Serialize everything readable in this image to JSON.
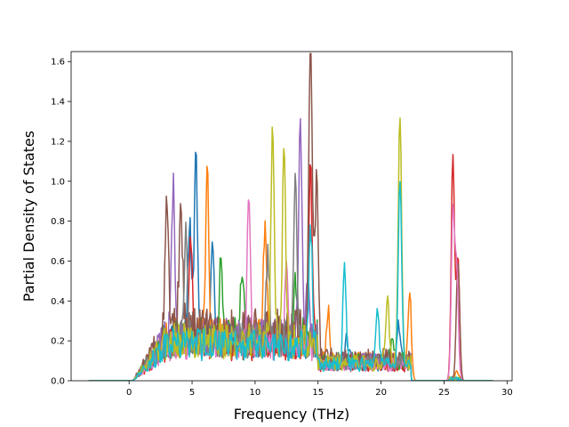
{
  "chart_data": {
    "type": "line",
    "title": "",
    "xlabel": "Frequency (THz)",
    "ylabel": "Partial Density of States",
    "xlim": [
      -4.6,
      30.4
    ],
    "ylim": [
      0,
      1.65
    ],
    "x_ticks": [
      0,
      5,
      10,
      15,
      20,
      25,
      30
    ],
    "y_ticks": [
      0.0,
      0.2,
      0.4,
      0.6,
      0.8,
      1.0,
      1.2,
      1.4,
      1.6
    ],
    "x_tick_labels": [
      "0",
      "5",
      "10",
      "15",
      "20",
      "25",
      "30"
    ],
    "y_tick_labels": [
      "0.0",
      "0.2",
      "0.4",
      "0.6",
      "0.8",
      "1.0",
      "1.2",
      "1.4",
      "1.6"
    ],
    "grid": false,
    "legend": "none",
    "series": [
      {
        "color": "#1f77b4",
        "peaks": [
          [
            5.3,
            0.93
          ],
          [
            4.8,
            0.62
          ],
          [
            6.6,
            0.5
          ],
          [
            17.3,
            0.12
          ],
          [
            21.4,
            0.2
          ]
        ],
        "base": 0.2
      },
      {
        "color": "#ff7f0e",
        "peaks": [
          [
            6.2,
            0.82
          ],
          [
            10.8,
            0.62
          ],
          [
            15.8,
            0.26
          ],
          [
            22.3,
            0.33
          ],
          [
            26.0,
            0.05
          ]
        ],
        "base": 0.22
      },
      {
        "color": "#2ca02c",
        "peaks": [
          [
            7.3,
            0.4
          ],
          [
            9.0,
            0.38
          ],
          [
            13.2,
            0.3
          ],
          [
            20.9,
            0.15
          ]
        ],
        "base": 0.22
      },
      {
        "color": "#d62728",
        "peaks": [
          [
            4.9,
            0.5
          ],
          [
            14.4,
            0.95
          ],
          [
            25.7,
            1.13
          ],
          [
            26.1,
            0.62
          ]
        ],
        "base": 0.18
      },
      {
        "color": "#9467bd",
        "peaks": [
          [
            3.5,
            0.79
          ],
          [
            13.6,
            1.09
          ],
          [
            14.2,
            0.35
          ]
        ],
        "base": 0.22
      },
      {
        "color": "#8c564b",
        "peaks": [
          [
            3.0,
            0.63
          ],
          [
            4.1,
            0.7
          ],
          [
            14.4,
            1.57
          ],
          [
            14.9,
            0.81
          ],
          [
            26.1,
            0.6
          ]
        ],
        "base": 0.25
      },
      {
        "color": "#e377c2",
        "peaks": [
          [
            9.5,
            0.75
          ],
          [
            12.5,
            0.35
          ],
          [
            25.7,
            0.84
          ],
          [
            26.0,
            0.55
          ]
        ],
        "base": 0.18
      },
      {
        "color": "#7f7f7f",
        "peaks": [
          [
            4.5,
            0.58
          ],
          [
            11.0,
            0.4
          ],
          [
            13.2,
            0.79
          ]
        ],
        "base": 0.2
      },
      {
        "color": "#bcbd22",
        "peaks": [
          [
            11.4,
            1.08
          ],
          [
            12.3,
            0.97
          ],
          [
            21.5,
            1.27
          ],
          [
            20.5,
            0.33
          ]
        ],
        "base": 0.2
      },
      {
        "color": "#17becf",
        "peaks": [
          [
            17.1,
            0.48
          ],
          [
            19.7,
            0.3
          ],
          [
            21.5,
            0.95
          ],
          [
            14.4,
            0.6
          ]
        ],
        "base": 0.18
      }
    ]
  }
}
